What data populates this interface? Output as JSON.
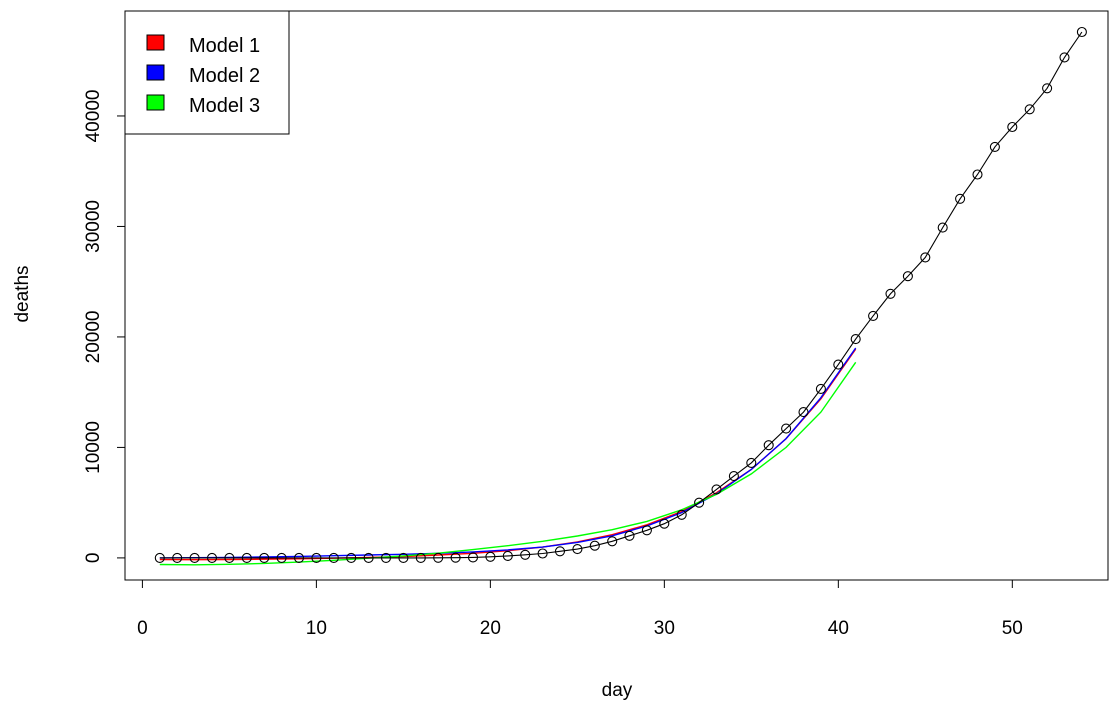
{
  "chart_data": {
    "type": "line",
    "xlabel": "day",
    "ylabel": "deaths",
    "xlim": [
      -1,
      55.5
    ],
    "ylim": [
      -2000,
      49500
    ],
    "x_ticks": [
      0,
      10,
      20,
      30,
      40,
      50
    ],
    "y_ticks": [
      0,
      10000,
      20000,
      30000,
      40000
    ],
    "legend_position": "top-left",
    "legend": [
      {
        "label": "Model 1",
        "color": "#ff0000"
      },
      {
        "label": "Model 2",
        "color": "#0000ff"
      },
      {
        "label": "Model 3",
        "color": "#00ff00"
      }
    ],
    "observed": {
      "color": "#000000",
      "x": [
        1,
        2,
        3,
        4,
        5,
        6,
        7,
        8,
        9,
        10,
        11,
        12,
        13,
        14,
        15,
        16,
        17,
        18,
        19,
        20,
        21,
        22,
        23,
        24,
        25,
        26,
        27,
        28,
        29,
        30,
        31,
        32,
        33,
        34,
        35,
        36,
        37,
        38,
        39,
        40,
        41,
        42,
        43,
        44,
        45,
        46,
        47,
        48,
        49,
        50,
        51,
        52,
        53,
        54
      ],
      "y": [
        0,
        0,
        0,
        0,
        0,
        0,
        0,
        0,
        0,
        0,
        0,
        0,
        0,
        0,
        0,
        0,
        10,
        20,
        50,
        100,
        180,
        280,
        400,
        600,
        800,
        1100,
        1500,
        2000,
        2500,
        3100,
        3900,
        5000,
        6200,
        7400,
        8600,
        10200,
        11700,
        13200,
        15300,
        17500,
        19800,
        21900,
        23900,
        25500,
        27200,
        29900,
        32500,
        34700,
        37200,
        39000,
        40600,
        42500,
        45300,
        47600
      ]
    },
    "series": [
      {
        "name": "Model 1",
        "color": "#ff0000",
        "x": [
          1,
          3,
          5,
          7,
          9,
          11,
          13,
          15,
          17,
          19,
          21,
          23,
          25,
          27,
          29,
          31,
          33,
          35,
          37,
          39,
          41
        ],
        "y": [
          -150,
          -160,
          -150,
          -120,
          -80,
          -30,
          40,
          130,
          260,
          420,
          650,
          980,
          1450,
          2100,
          3000,
          4200,
          5900,
          8000,
          10800,
          14400,
          18900
        ]
      },
      {
        "name": "Model 2",
        "color": "#0000ff",
        "x": [
          1,
          3,
          5,
          7,
          9,
          11,
          13,
          15,
          17,
          19,
          21,
          23,
          25,
          27,
          29,
          31,
          33,
          35,
          37,
          39,
          41
        ],
        "y": [
          0,
          20,
          50,
          90,
          140,
          200,
          260,
          330,
          420,
          540,
          720,
          980,
          1400,
          2000,
          2900,
          4100,
          5800,
          8000,
          10800,
          14500,
          19000
        ]
      },
      {
        "name": "Model 3",
        "color": "#00ff00",
        "x": [
          1,
          3,
          5,
          7,
          9,
          11,
          13,
          15,
          17,
          19,
          21,
          23,
          25,
          27,
          29,
          31,
          33,
          35,
          37,
          39,
          41
        ],
        "y": [
          -600,
          -620,
          -580,
          -500,
          -380,
          -220,
          -30,
          180,
          430,
          750,
          1100,
          1500,
          1980,
          2550,
          3300,
          4350,
          5750,
          7600,
          10000,
          13200,
          17700
        ]
      }
    ]
  }
}
